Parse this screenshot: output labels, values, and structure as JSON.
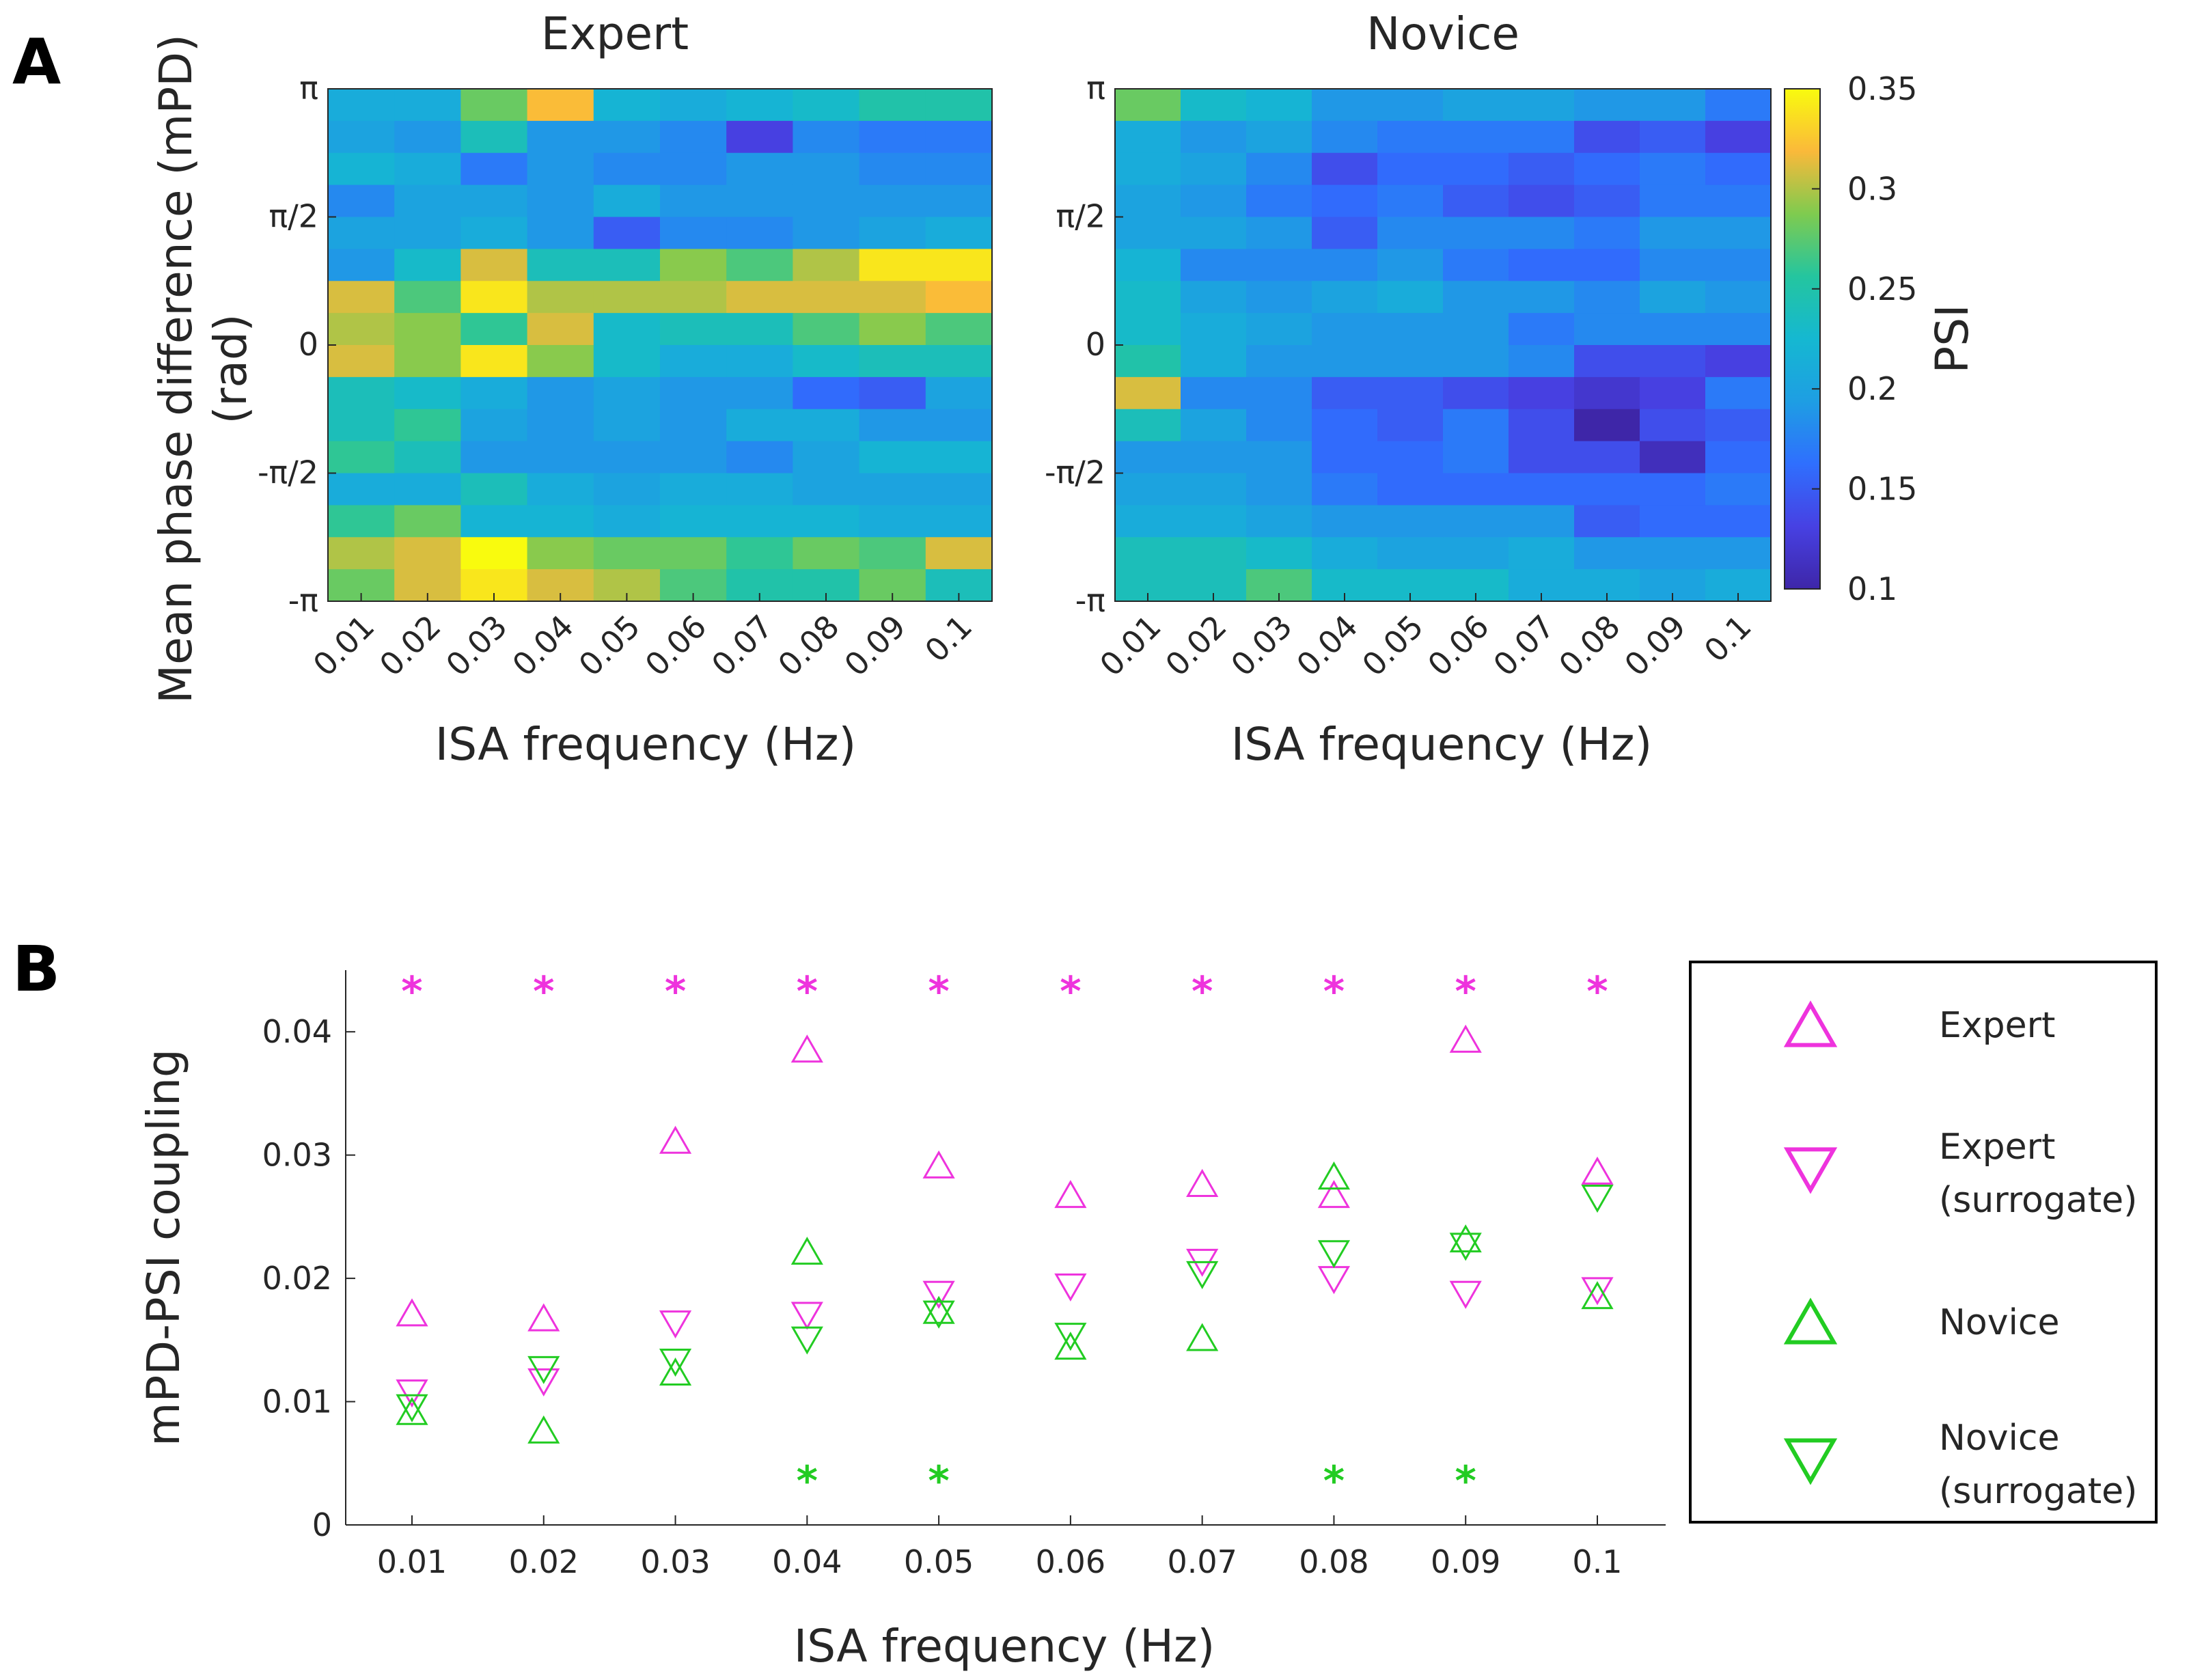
{
  "panels": {
    "a_letter": "A",
    "b_letter": "B"
  },
  "chart_data": [
    {
      "type": "heatmap",
      "panel": "A",
      "title": "Expert",
      "xlabel": "ISA frequency (Hz)",
      "ylabel_line1": "Mean phase difference (mPD)",
      "ylabel_line2": "(rad)",
      "x_ticks": [
        "0.01",
        "0.02",
        "0.03",
        "0.04",
        "0.05",
        "0.06",
        "0.07",
        "0.08",
        "0.09",
        "0.1"
      ],
      "y_ticks": [
        "π",
        "π/2",
        "0",
        "-π/2",
        "-π"
      ],
      "rows_top_to_bottom": [
        [
          0.21,
          0.21,
          0.28,
          0.32,
          0.22,
          0.21,
          0.22,
          0.23,
          0.25,
          0.25
        ],
        [
          0.2,
          0.19,
          0.24,
          0.19,
          0.19,
          0.18,
          0.13,
          0.18,
          0.17,
          0.17
        ],
        [
          0.22,
          0.21,
          0.17,
          0.19,
          0.18,
          0.18,
          0.19,
          0.19,
          0.18,
          0.18
        ],
        [
          0.18,
          0.2,
          0.2,
          0.19,
          0.21,
          0.19,
          0.19,
          0.19,
          0.19,
          0.19
        ],
        [
          0.2,
          0.2,
          0.21,
          0.19,
          0.15,
          0.18,
          0.18,
          0.19,
          0.2,
          0.21
        ],
        [
          0.19,
          0.23,
          0.31,
          0.24,
          0.24,
          0.29,
          0.27,
          0.3,
          0.34,
          0.34
        ],
        [
          0.31,
          0.27,
          0.34,
          0.3,
          0.3,
          0.3,
          0.31,
          0.31,
          0.31,
          0.32
        ],
        [
          0.3,
          0.29,
          0.26,
          0.31,
          0.23,
          0.24,
          0.24,
          0.27,
          0.29,
          0.27
        ],
        [
          0.31,
          0.29,
          0.34,
          0.29,
          0.23,
          0.21,
          0.21,
          0.23,
          0.24,
          0.24
        ],
        [
          0.24,
          0.23,
          0.21,
          0.19,
          0.2,
          0.19,
          0.19,
          0.16,
          0.15,
          0.2
        ],
        [
          0.24,
          0.26,
          0.2,
          0.19,
          0.2,
          0.19,
          0.21,
          0.21,
          0.19,
          0.19
        ],
        [
          0.26,
          0.24,
          0.19,
          0.19,
          0.19,
          0.19,
          0.18,
          0.2,
          0.22,
          0.22
        ],
        [
          0.21,
          0.21,
          0.24,
          0.21,
          0.2,
          0.21,
          0.21,
          0.2,
          0.2,
          0.2
        ],
        [
          0.26,
          0.28,
          0.22,
          0.22,
          0.21,
          0.22,
          0.22,
          0.22,
          0.21,
          0.21
        ],
        [
          0.3,
          0.31,
          0.35,
          0.29,
          0.28,
          0.28,
          0.26,
          0.28,
          0.27,
          0.31
        ],
        [
          0.28,
          0.31,
          0.34,
          0.31,
          0.3,
          0.27,
          0.25,
          0.25,
          0.28,
          0.24
        ]
      ]
    },
    {
      "type": "heatmap",
      "panel": "A",
      "title": "Novice",
      "xlabel": "ISA frequency (Hz)",
      "x_ticks": [
        "0.01",
        "0.02",
        "0.03",
        "0.04",
        "0.05",
        "0.06",
        "0.07",
        "0.08",
        "0.09",
        "0.1"
      ],
      "y_ticks": [
        "π",
        "π/2",
        "0",
        "-π/2",
        "-π"
      ],
      "colorbar": {
        "label": "PSI",
        "range": [
          0.1,
          0.35
        ],
        "ticks": [
          "0.1",
          "0.15",
          "0.2",
          "0.25",
          "0.3",
          "0.35"
        ]
      },
      "rows_top_to_bottom": [
        [
          0.28,
          0.23,
          0.22,
          0.19,
          0.19,
          0.2,
          0.2,
          0.19,
          0.19,
          0.17
        ],
        [
          0.21,
          0.19,
          0.2,
          0.18,
          0.17,
          0.17,
          0.17,
          0.14,
          0.15,
          0.13
        ],
        [
          0.21,
          0.2,
          0.18,
          0.14,
          0.16,
          0.16,
          0.15,
          0.16,
          0.17,
          0.16
        ],
        [
          0.2,
          0.19,
          0.17,
          0.16,
          0.17,
          0.15,
          0.14,
          0.15,
          0.17,
          0.17
        ],
        [
          0.2,
          0.2,
          0.19,
          0.15,
          0.18,
          0.18,
          0.18,
          0.17,
          0.19,
          0.19
        ],
        [
          0.22,
          0.18,
          0.18,
          0.18,
          0.19,
          0.17,
          0.16,
          0.16,
          0.18,
          0.18
        ],
        [
          0.23,
          0.2,
          0.19,
          0.2,
          0.21,
          0.19,
          0.19,
          0.18,
          0.2,
          0.19
        ],
        [
          0.23,
          0.21,
          0.2,
          0.19,
          0.19,
          0.19,
          0.17,
          0.18,
          0.18,
          0.18
        ],
        [
          0.25,
          0.21,
          0.19,
          0.19,
          0.19,
          0.19,
          0.18,
          0.14,
          0.14,
          0.13
        ],
        [
          0.31,
          0.18,
          0.18,
          0.15,
          0.15,
          0.14,
          0.13,
          0.12,
          0.13,
          0.17
        ],
        [
          0.24,
          0.2,
          0.18,
          0.16,
          0.15,
          0.17,
          0.14,
          0.1,
          0.14,
          0.15
        ],
        [
          0.19,
          0.19,
          0.19,
          0.16,
          0.16,
          0.17,
          0.14,
          0.14,
          0.11,
          0.16
        ],
        [
          0.2,
          0.2,
          0.19,
          0.17,
          0.16,
          0.16,
          0.16,
          0.16,
          0.16,
          0.17
        ],
        [
          0.21,
          0.21,
          0.2,
          0.19,
          0.19,
          0.19,
          0.19,
          0.15,
          0.16,
          0.16
        ],
        [
          0.24,
          0.24,
          0.23,
          0.21,
          0.2,
          0.2,
          0.21,
          0.19,
          0.19,
          0.19
        ],
        [
          0.24,
          0.24,
          0.27,
          0.23,
          0.23,
          0.23,
          0.21,
          0.21,
          0.2,
          0.21
        ]
      ]
    },
    {
      "type": "scatter",
      "panel": "B",
      "xlabel": "ISA frequency (Hz)",
      "ylabel": "mPD-PSI coupling",
      "categories": [
        "0.01",
        "0.02",
        "0.03",
        "0.04",
        "0.05",
        "0.06",
        "0.07",
        "0.08",
        "0.09",
        "0.1"
      ],
      "ylim": [
        0,
        0.045
      ],
      "y_ticks": [
        "0",
        "0.01",
        "0.02",
        "0.03",
        "0.04"
      ],
      "series": [
        {
          "name": "Expert",
          "line2": "",
          "marker": "triangle-up",
          "color": "#ee33dd",
          "values": [
            0.0172,
            0.0168,
            0.0312,
            0.0386,
            0.0292,
            0.0268,
            0.0277,
            0.0268,
            0.0394,
            0.0287
          ]
        },
        {
          "name": "Expert",
          "line2": "(surrogate)",
          "marker": "triangle-down",
          "color": "#ee33dd",
          "values": [
            0.0107,
            0.0116,
            0.0163,
            0.017,
            0.0187,
            0.0193,
            0.0213,
            0.0199,
            0.0187,
            0.019
          ]
        },
        {
          "name": "Novice",
          "line2": "",
          "marker": "triangle-up",
          "color": "#22cc22",
          "values": [
            0.0092,
            0.0077,
            0.0124,
            0.0222,
            0.0174,
            0.0145,
            0.0152,
            0.0283,
            0.0232,
            0.0186
          ]
        },
        {
          "name": "Novice",
          "line2": "(surrogate)",
          "marker": "triangle-down",
          "color": "#22cc22",
          "values": [
            0.0095,
            0.0126,
            0.0132,
            0.015,
            0.0171,
            0.0153,
            0.0203,
            0.022,
            0.0226,
            0.0265
          ]
        }
      ],
      "significance": {
        "symbol": "*",
        "expert_y": 0.0437,
        "novice_y": 0.004,
        "expert_color": "#ee33dd",
        "novice_color": "#22cc22",
        "expert": [
          true,
          true,
          true,
          true,
          true,
          true,
          true,
          true,
          true,
          true
        ],
        "novice": [
          false,
          false,
          false,
          true,
          true,
          false,
          false,
          true,
          true,
          false
        ]
      }
    }
  ]
}
